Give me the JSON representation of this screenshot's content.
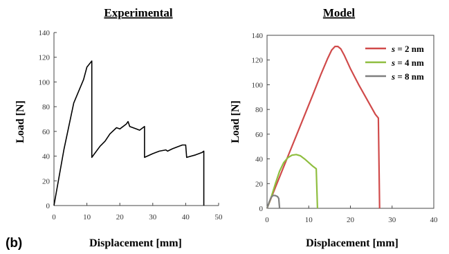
{
  "panel_letter": "(b)",
  "chart_data": [
    {
      "type": "line",
      "title": "Experimental",
      "xlabel": "Displacement [mm]",
      "ylabel": "Load [N]",
      "xlim": [
        0,
        50
      ],
      "ylim": [
        0,
        140
      ],
      "xticks": [
        0,
        10,
        20,
        30,
        40,
        50
      ],
      "yticks": [
        0,
        20,
        40,
        60,
        80,
        100,
        120,
        140
      ],
      "grid": false,
      "series": [
        {
          "color": "#000000",
          "points": [
            [
              0,
              0
            ],
            [
              3,
              45
            ],
            [
              6,
              83
            ],
            [
              9,
              102
            ],
            [
              10,
              112
            ],
            [
              11.5,
              117
            ],
            [
              11.5,
              39
            ],
            [
              14,
              48
            ],
            [
              15.5,
              52
            ],
            [
              17,
              58
            ],
            [
              19,
              63
            ],
            [
              20,
              62
            ],
            [
              22,
              66
            ],
            [
              22.5,
              68
            ],
            [
              23,
              64
            ],
            [
              25,
              62
            ],
            [
              26,
              61
            ],
            [
              27.5,
              64
            ],
            [
              27.5,
              39
            ],
            [
              30,
              42
            ],
            [
              32,
              44
            ],
            [
              34,
              45
            ],
            [
              34.5,
              44
            ],
            [
              36,
              46
            ],
            [
              38,
              48
            ],
            [
              39,
              49
            ],
            [
              40,
              49
            ],
            [
              40.3,
              39
            ],
            [
              43,
              41
            ],
            [
              45,
              43
            ],
            [
              45.5,
              44
            ],
            [
              45.5,
              0
            ]
          ]
        }
      ]
    },
    {
      "type": "line",
      "title": "Model",
      "xlabel": "Displacement [mm]",
      "ylabel": "Load [N]",
      "xlim": [
        0,
        40
      ],
      "ylim": [
        0,
        140
      ],
      "xticks": [
        0,
        10,
        20,
        30,
        40
      ],
      "yticks": [
        0,
        20,
        40,
        60,
        80,
        100,
        120,
        140
      ],
      "grid": false,
      "legend_position": "top-right",
      "series": [
        {
          "name": "s = 2 nm",
          "color": "#d04a4a",
          "points": [
            [
              0,
              0
            ],
            [
              2,
              17
            ],
            [
              5,
              42
            ],
            [
              8,
              67
            ],
            [
              11,
              92
            ],
            [
              13,
              109
            ],
            [
              14.5,
              121
            ],
            [
              15.5,
              128
            ],
            [
              16.3,
              131
            ],
            [
              17,
              131
            ],
            [
              17.7,
              129
            ],
            [
              18.5,
              124
            ],
            [
              20,
              113
            ],
            [
              22,
              100
            ],
            [
              24,
              88
            ],
            [
              26,
              76
            ],
            [
              26.7,
              73
            ],
            [
              27,
              0
            ]
          ]
        },
        {
          "name": "s = 4 nm",
          "color": "#8fbe3f",
          "points": [
            [
              0,
              0
            ],
            [
              1,
              9
            ],
            [
              2,
              20
            ],
            [
              3,
              30
            ],
            [
              4,
              37
            ],
            [
              5,
              41
            ],
            [
              6,
              43
            ],
            [
              7,
              43.5
            ],
            [
              8,
              42.5
            ],
            [
              9,
              40
            ],
            [
              10,
              37
            ],
            [
              11,
              34
            ],
            [
              11.8,
              32
            ],
            [
              12.1,
              0
            ]
          ]
        },
        {
          "name": "s = 8 nm",
          "color": "#7f7f7f",
          "points": [
            [
              0,
              0
            ],
            [
              0.5,
              5
            ],
            [
              1,
              9
            ],
            [
              1.5,
              10.5
            ],
            [
              2,
              10.3
            ],
            [
              2.5,
              9.5
            ],
            [
              2.8,
              8
            ],
            [
              3,
              0
            ]
          ]
        }
      ]
    }
  ]
}
